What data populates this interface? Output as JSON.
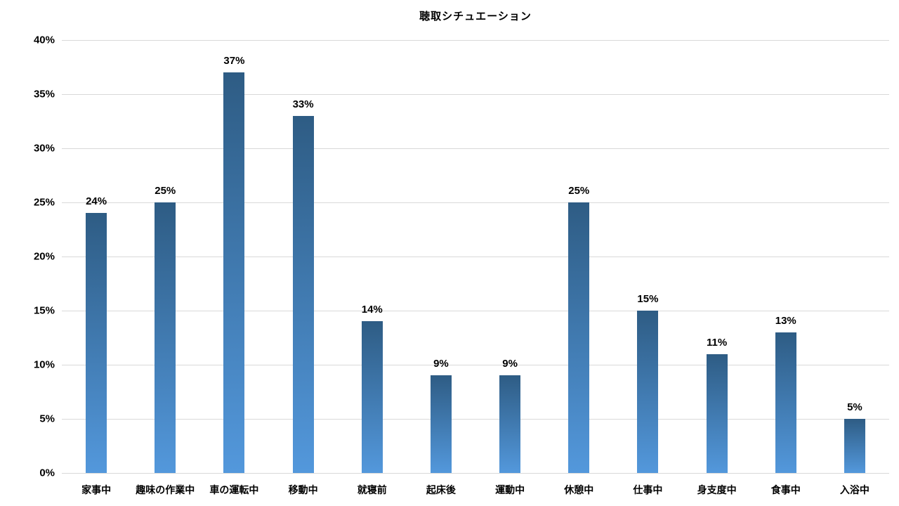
{
  "title": "聴取シチュエーション",
  "chart_data": {
    "type": "bar",
    "title": "聴取シチュエーション",
    "categories": [
      "家事中",
      "趣味の作業中",
      "車の運転中",
      "移動中",
      "就寝前",
      "起床後",
      "運動中",
      "休憩中",
      "仕事中",
      "身支度中",
      "食事中",
      "入浴中"
    ],
    "values": [
      24,
      25,
      37,
      33,
      14,
      9,
      9,
      25,
      15,
      11,
      13,
      5
    ],
    "value_labels": [
      "24%",
      "25%",
      "37%",
      "33%",
      "14%",
      "9%",
      "9%",
      "25%",
      "15%",
      "11%",
      "13%",
      "5%"
    ],
    "ylabel": "",
    "xlabel": "",
    "ylim": [
      0,
      40
    ],
    "ytick_step": 5,
    "ytick_labels": [
      "0%",
      "5%",
      "10%",
      "15%",
      "20%",
      "25%",
      "30%",
      "35%",
      "40%"
    ],
    "grid": true,
    "legend": "none",
    "colors": {
      "bar_gradient_top": "#2E5C84",
      "bar_gradient_bottom": "#5398DC",
      "gridline": "#D9D9D9",
      "text": "#000000",
      "background": "#FFFFFF"
    }
  }
}
